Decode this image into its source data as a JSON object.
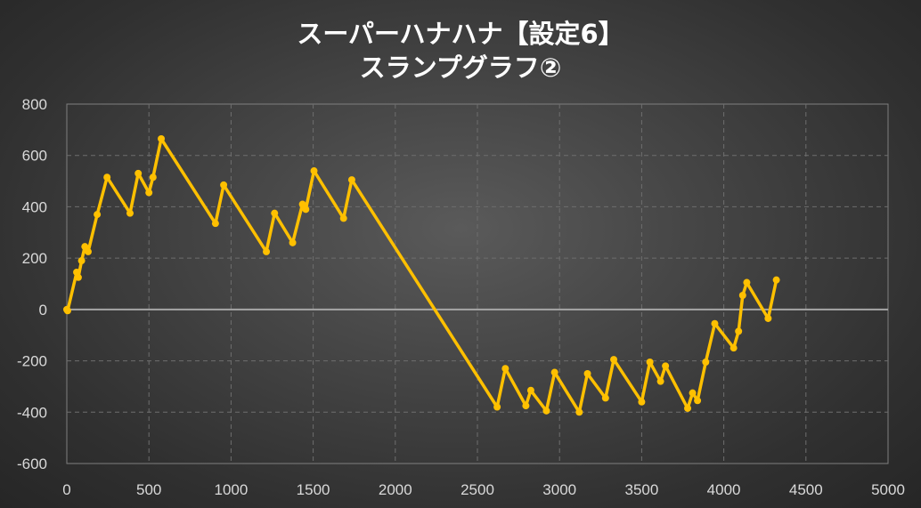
{
  "chart_data": {
    "type": "line",
    "title_line1": "スーパーハナハナ【設定6】",
    "title_line2": "スランプグラフ②",
    "xlabel": "",
    "ylabel": "",
    "xlim": [
      0,
      5000
    ],
    "ylim": [
      -600,
      800
    ],
    "x_ticks": [
      0,
      500,
      1000,
      1500,
      2000,
      2500,
      3000,
      3500,
      4000,
      4500,
      5000
    ],
    "y_ticks": [
      800,
      600,
      400,
      200,
      0,
      -200,
      -400,
      -600
    ],
    "grid": true,
    "legend": "none",
    "series": [
      {
        "color": "#ffc000",
        "x": [
          0,
          5,
          60,
          70,
          90,
          110,
          130,
          185,
          245,
          385,
          435,
          500,
          525,
          575,
          905,
          955,
          1215,
          1265,
          1375,
          1435,
          1455,
          1505,
          1685,
          1735,
          2620,
          2670,
          2795,
          2825,
          2920,
          2970,
          3120,
          3170,
          3280,
          3330,
          3500,
          3550,
          3615,
          3645,
          3780,
          3810,
          3840,
          3890,
          3945,
          4060,
          4090,
          4115,
          4140,
          4270,
          4320
        ],
        "y": [
          0,
          -5,
          145,
          125,
          190,
          245,
          225,
          370,
          515,
          375,
          530,
          455,
          515,
          665,
          335,
          485,
          225,
          375,
          260,
          410,
          390,
          540,
          355,
          505,
          -380,
          -230,
          -375,
          -315,
          -395,
          -245,
          -400,
          -250,
          -345,
          -195,
          -360,
          -205,
          -280,
          -220,
          -385,
          -325,
          -355,
          -205,
          -55,
          -150,
          -85,
          55,
          105,
          -35,
          115
        ]
      }
    ],
    "zero_line_color": "#a6a6a6"
  }
}
